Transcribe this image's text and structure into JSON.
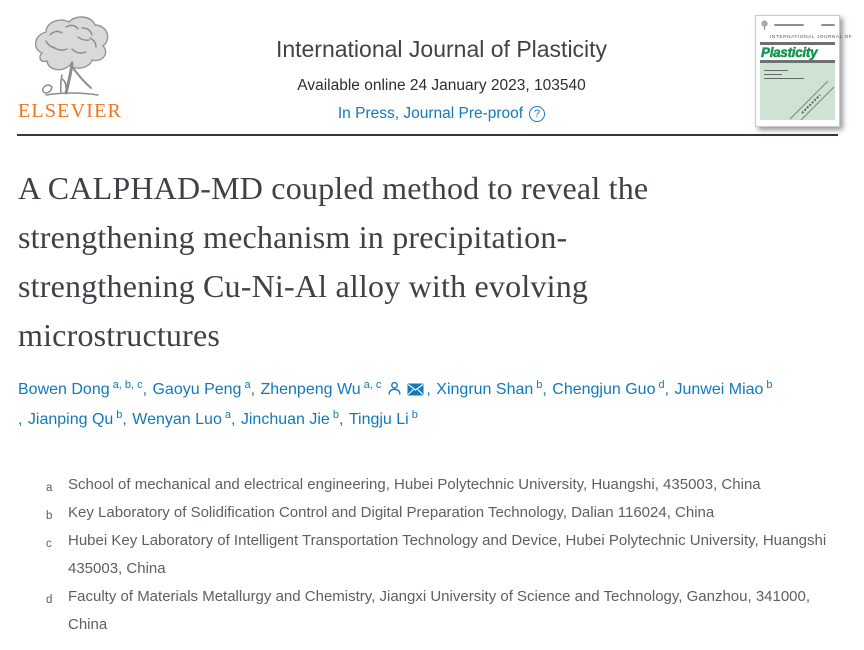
{
  "header": {
    "elsevier_wordmark": "ELSEVIER",
    "journal_title": "International Journal of Plasticity",
    "availability": "Available online 24 January 2023, 103540",
    "in_press_label": "In Press, Journal Pre-proof",
    "help_icon_glyph": "?",
    "cover": {
      "kicker": "INTERNATIONAL JOURNAL OF",
      "wordmark": "Plasticity"
    }
  },
  "article": {
    "title_full": "A CALPHAD-MD coupled method to reveal the strengthening mechanism in precipitation-strengthening Cu-Ni-Al alloy with evolving microstructures",
    "title_lines": [
      "A CALPHAD-MD coupled method to reveal the",
      "strengthening mechanism in precipitation-",
      "strengthening Cu-Ni-Al alloy with evolving",
      "microstructures"
    ]
  },
  "authors": {
    "lines": [
      [
        {
          "name": "Bowen Dong",
          "sup": "a, b, c",
          "sep": ", "
        },
        {
          "name": "Gaoyu Peng",
          "sup": "a",
          "sep": ", "
        },
        {
          "name": "Zhenpeng Wu",
          "sup": "a, c",
          "corresponding": true,
          "sep": ", "
        },
        {
          "name": "Xingrun Shan",
          "sup": "b",
          "sep": ", "
        },
        {
          "name": "Chengjun Guo",
          "sup": "d",
          "sep": ", "
        },
        {
          "name": "Junwei Miao",
          "sup": "b"
        }
      ],
      [
        {
          "pre": ", ",
          "name": "Jianping Qu",
          "sup": "b",
          "sep": ", "
        },
        {
          "name": "Wenyan Luo",
          "sup": "a",
          "sep": ", "
        },
        {
          "name": "Jinchuan Jie",
          "sup": "b",
          "sep": ", "
        },
        {
          "name": "Tingju Li",
          "sup": "b"
        }
      ]
    ]
  },
  "affiliations": [
    {
      "label": "a",
      "text": "School of mechanical and electrical engineering, Hubei Polytechnic University, Huangshi, 435003, China"
    },
    {
      "label": "b",
      "text": "Key Laboratory of Solidification Control and Digital Preparation Technology, Dalian 116024, China"
    },
    {
      "label": "c",
      "text": "Hubei Key Laboratory of Intelligent Transportation Technology and Device, Hubei Polytechnic University, Huangshi 435003, China"
    },
    {
      "label": "d",
      "text": "Faculty of Materials Metallurgy and Chemistry, Jiangxi University of Science and Technology, Ganzhou, 341000, China"
    }
  ],
  "colors": {
    "link_blue": "#1279bd",
    "elsevier_orange": "#ee751d",
    "cover_green_logo": "#00a651",
    "cover_mint": "#cfe3d4",
    "title_gray": "#3d4247",
    "body_gray": "#5c6063",
    "divider_dark": "#383838"
  }
}
